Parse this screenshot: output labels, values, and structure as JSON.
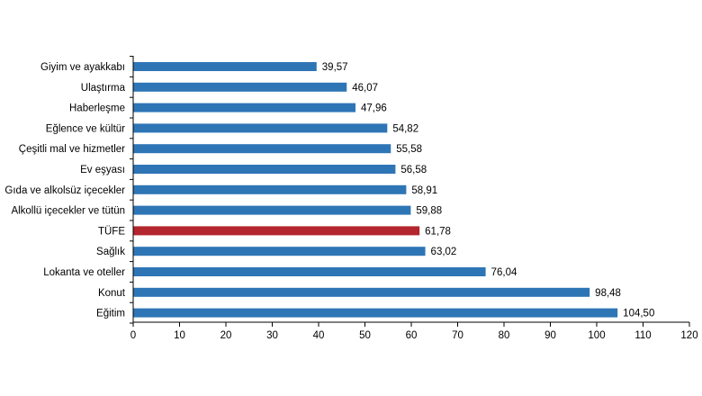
{
  "colors": {
    "bar": "#2e75b6",
    "highlight_bar": "#b3262d",
    "axis": "#000000"
  },
  "chart_data": {
    "type": "bar",
    "orientation": "horizontal",
    "title": "",
    "xlabel": "",
    "ylabel": "",
    "xlim": [
      0,
      120
    ],
    "x_ticks": [
      "0",
      "10",
      "20",
      "30",
      "40",
      "50",
      "60",
      "70",
      "80",
      "90",
      "100",
      "110",
      "120"
    ],
    "grid": false,
    "legend": "none",
    "highlight_category": "TÜFE",
    "categories": [
      "Giyim ve ayakkabı",
      "Ulaştırma",
      "Haberleşme",
      "Eğlence ve kültür",
      "Çeşitli mal ve hizmetler",
      "Ev eşyası",
      "Gıda ve alkolsüz içecekler",
      "Alkollü içecekler ve tütün",
      "TÜFE",
      "Sağlık",
      "Lokanta ve oteller",
      "Konut",
      "Eğitim"
    ],
    "values": [
      39.57,
      46.07,
      47.96,
      54.82,
      55.58,
      56.58,
      58.91,
      59.88,
      61.78,
      63.02,
      76.04,
      98.48,
      104.5
    ],
    "value_labels": [
      "39,57",
      "46,07",
      "47,96",
      "54,82",
      "55,58",
      "56,58",
      "58,91",
      "59,88",
      "61,78",
      "63,02",
      "76,04",
      "98,48",
      "104,50"
    ]
  }
}
